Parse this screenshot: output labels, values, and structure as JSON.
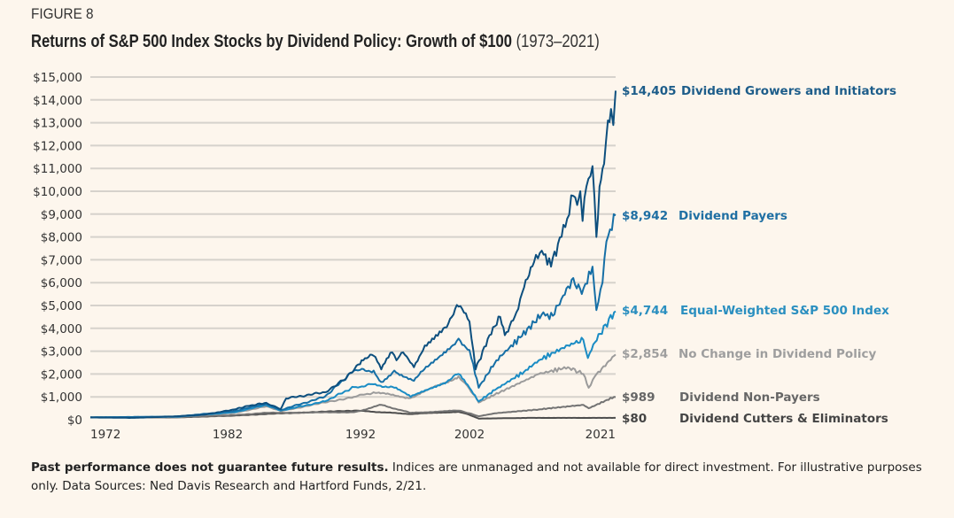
{
  "figure_label": "FIGURE 8",
  "title": "Returns of S&P 500 Index Stocks by Dividend Policy: Growth of $100",
  "title_range": "(1973–2021)",
  "footer": {
    "bold": "Past performance does not guarantee future results.",
    "text": " Indices are unmanaged and not available for direct investment. For illustrative purposes only. Data Sources: Ned Davis Research and Hartford Funds, 2/21."
  },
  "chart_data": {
    "type": "line",
    "title": "Returns of S&P 500 Index Stocks by Dividend Policy: Growth of $100 (1973–2021)",
    "xlabel": "",
    "ylabel": "",
    "ylim": [
      0,
      15000
    ],
    "grid": true,
    "legend": "right (end-of-line labels)",
    "x_ticks": [
      "1972",
      "1982",
      "1992",
      "2002",
      "2021"
    ],
    "y_ticks": [
      "$0",
      "$1,000",
      "$2,000",
      "$3,000",
      "$4,000",
      "$5,000",
      "$6,000",
      "$7,000",
      "$8,000",
      "$9,000",
      "$10,000",
      "$11,000",
      "$12,000",
      "$13,000",
      "$14,000",
      "$15,000"
    ],
    "series": [
      {
        "name": "Dividend Growers and Initiators",
        "end_label": "$14,405",
        "color": "#0d4f7e",
        "label_color": "#1d5d8a",
        "points": [
          [
            1972,
            100
          ],
          [
            1975.1,
            80
          ],
          [
            1978.3,
            150
          ],
          [
            1980.3,
            220
          ],
          [
            1982.5,
            450
          ],
          [
            1983.5,
            600
          ],
          [
            1984.9,
            740
          ],
          [
            1986.0,
            470
          ],
          [
            1986.4,
            930
          ],
          [
            1989.3,
            1200
          ],
          [
            1990.9,
            1800
          ],
          [
            1992.1,
            2600
          ],
          [
            1993.2,
            2800
          ],
          [
            1993.9,
            2200
          ],
          [
            1994.9,
            2950
          ],
          [
            1995.3,
            2600
          ],
          [
            1995.9,
            2950
          ],
          [
            1996.9,
            2300
          ],
          [
            1997.9,
            3250
          ],
          [
            1999.6,
            4000
          ],
          [
            2001.0,
            4950
          ],
          [
            2002.0,
            4300
          ],
          [
            2002.8,
            2200
          ],
          [
            2004.6,
            3700
          ],
          [
            2006.0,
            4500
          ],
          [
            2006.6,
            3700
          ],
          [
            2008.1,
            4700
          ],
          [
            2009.1,
            5800
          ],
          [
            2010.4,
            6900
          ],
          [
            2011.4,
            7400
          ],
          [
            2012.6,
            6700
          ],
          [
            2013.5,
            7700
          ],
          [
            2014.7,
            8800
          ],
          [
            2015.5,
            9800
          ],
          [
            2016.0,
            9400
          ],
          [
            2016.4,
            10000
          ],
          [
            2016.7,
            8700
          ],
          [
            2017.2,
            10200
          ],
          [
            2018.0,
            11100
          ],
          [
            2018.5,
            8000
          ],
          [
            2018.9,
            10200
          ],
          [
            2019.5,
            11200
          ],
          [
            2020.0,
            13100
          ],
          [
            2020.4,
            13600
          ],
          [
            2020.7,
            12900
          ],
          [
            2021.0,
            14405
          ]
        ]
      },
      {
        "name": "Dividend Payers",
        "end_label": "$8,942",
        "color": "#166fa6",
        "label_color": "#1f6fa3",
        "points": [
          [
            1972,
            100
          ],
          [
            1978.3,
            140
          ],
          [
            1982.5,
            380
          ],
          [
            1984.9,
            700
          ],
          [
            1986.0,
            430
          ],
          [
            1989.3,
            1000
          ],
          [
            1991.5,
            2150
          ],
          [
            1993.2,
            2150
          ],
          [
            1993.9,
            1650
          ],
          [
            1995.1,
            2150
          ],
          [
            1996.9,
            1700
          ],
          [
            1998.5,
            2500
          ],
          [
            2001.0,
            3550
          ],
          [
            2002.0,
            3050
          ],
          [
            2003.2,
            1400
          ],
          [
            2005.5,
            2600
          ],
          [
            2008.6,
            3600
          ],
          [
            2011.6,
            4700
          ],
          [
            2012.4,
            4400
          ],
          [
            2013.5,
            5000
          ],
          [
            2015.5,
            6200
          ],
          [
            2016.6,
            5500
          ],
          [
            2018.0,
            6700
          ],
          [
            2018.5,
            4800
          ],
          [
            2019.3,
            6000
          ],
          [
            2019.8,
            7800
          ],
          [
            2021.0,
            8942
          ]
        ]
      },
      {
        "name": "Equal-Weighted S&P 500 Index",
        "end_label": "$4,744",
        "color": "#1a8cc4",
        "label_color": "#2a8fc0",
        "points": [
          [
            1972,
            100
          ],
          [
            1978.3,
            130
          ],
          [
            1982.5,
            330
          ],
          [
            1984.9,
            640
          ],
          [
            1986.0,
            400
          ],
          [
            1989.3,
            800
          ],
          [
            1991.5,
            1430
          ],
          [
            1993.2,
            1550
          ],
          [
            1995.1,
            1400
          ],
          [
            1996.6,
            1000
          ],
          [
            1999.6,
            1600
          ],
          [
            2001.0,
            2000
          ],
          [
            2002.0,
            1400
          ],
          [
            2003.2,
            800
          ],
          [
            2005.3,
            1300
          ],
          [
            2009.1,
            2100
          ],
          [
            2011.0,
            2600
          ],
          [
            2014.8,
            3250
          ],
          [
            2016.8,
            3500
          ],
          [
            2017.4,
            2700
          ],
          [
            2018.1,
            3300
          ],
          [
            2020.8,
            4700
          ],
          [
            2021.0,
            4744
          ]
        ]
      },
      {
        "name": "No Change in Dividend Policy",
        "end_label": "$2,854",
        "color": "#9b9b9b",
        "label_color": "#9e9e9e",
        "points": [
          [
            1972,
            100
          ],
          [
            1978.3,
            120
          ],
          [
            1982.5,
            300
          ],
          [
            1984.9,
            580
          ],
          [
            1986.0,
            380
          ],
          [
            1991.5,
            1000
          ],
          [
            1993.2,
            1200
          ],
          [
            1996.6,
            950
          ],
          [
            2001.0,
            1900
          ],
          [
            2003.2,
            750
          ],
          [
            2005.3,
            1100
          ],
          [
            2011.0,
            2000
          ],
          [
            2014.8,
            2300
          ],
          [
            2016.8,
            2000
          ],
          [
            2017.5,
            1400
          ],
          [
            2018.3,
            1900
          ],
          [
            2020.8,
            2800
          ],
          [
            2021.0,
            2854
          ]
        ]
      },
      {
        "name": "Dividend Non-Payers",
        "end_label": "$989",
        "color": "#737373",
        "label_color": "#666666",
        "points": [
          [
            1972,
            100
          ],
          [
            1978.3,
            110
          ],
          [
            1982.5,
            200
          ],
          [
            1984.9,
            300
          ],
          [
            1991.5,
            330
          ],
          [
            1993.9,
            650
          ],
          [
            1996.6,
            300
          ],
          [
            2001.0,
            400
          ],
          [
            2003.2,
            150
          ],
          [
            2005.3,
            280
          ],
          [
            2011.0,
            450
          ],
          [
            2016.8,
            650
          ],
          [
            2017.5,
            500
          ],
          [
            2020.8,
            1000
          ],
          [
            2021.0,
            989
          ]
        ]
      },
      {
        "name": "Dividend Cutters & Eliminators",
        "end_label": "$80",
        "color": "#4d4d4d",
        "label_color": "#444444",
        "points": [
          [
            1972,
            100
          ],
          [
            1978.3,
            100
          ],
          [
            1982.5,
            180
          ],
          [
            1984.9,
            250
          ],
          [
            1991.5,
            400
          ],
          [
            1996.6,
            250
          ],
          [
            2001.0,
            350
          ],
          [
            2003.2,
            50
          ],
          [
            2010.0,
            80
          ],
          [
            2021.0,
            80
          ]
        ]
      }
    ]
  }
}
